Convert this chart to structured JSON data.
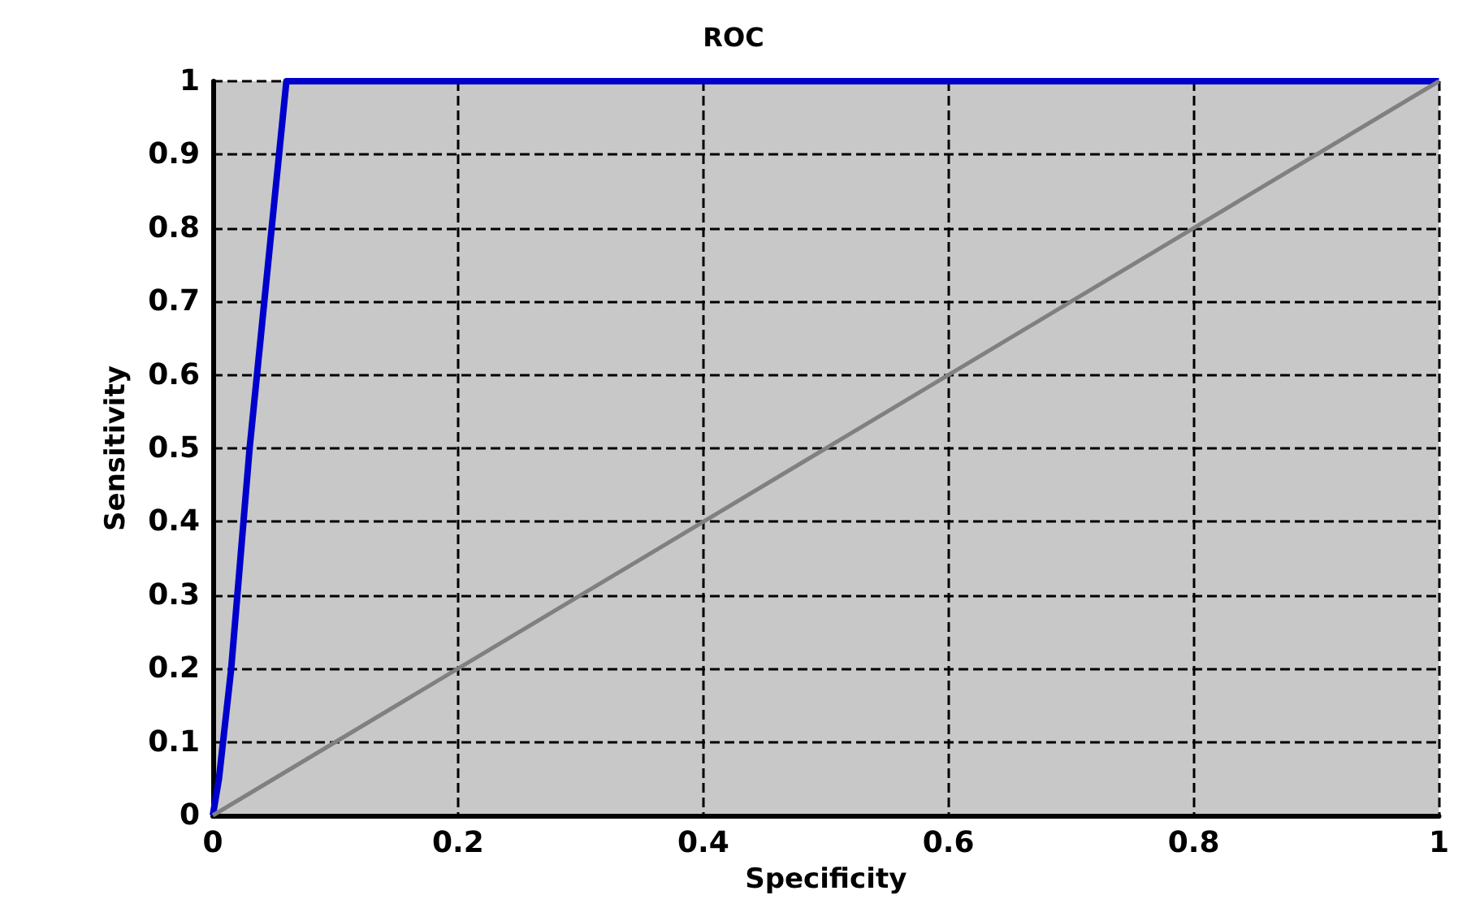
{
  "chart_data": {
    "type": "line",
    "title": "ROC",
    "xlabel": "Specificity",
    "ylabel": "Sensitivity",
    "series": [
      {
        "color": "#0000cc",
        "x": [
          0,
          0.005,
          0.015,
          0.03,
          0.045,
          0.06,
          1
        ],
        "values": [
          0,
          0.05,
          0.2,
          0.5,
          0.75,
          1,
          1
        ]
      },
      {
        "color": "#808080",
        "x": [
          0,
          1
        ],
        "values": [
          0,
          1
        ]
      }
    ],
    "xlim": [
      0,
      1
    ],
    "xticks": [
      0,
      0.2,
      0.4,
      0.6,
      0.8,
      1
    ],
    "ylim": [
      0,
      1
    ],
    "yticks": [
      0,
      0.1,
      0.2,
      0.3,
      0.4,
      0.5,
      0.6,
      0.7,
      0.8,
      0.9,
      1
    ],
    "grid": true,
    "line_style": "solid",
    "marker": "none"
  }
}
